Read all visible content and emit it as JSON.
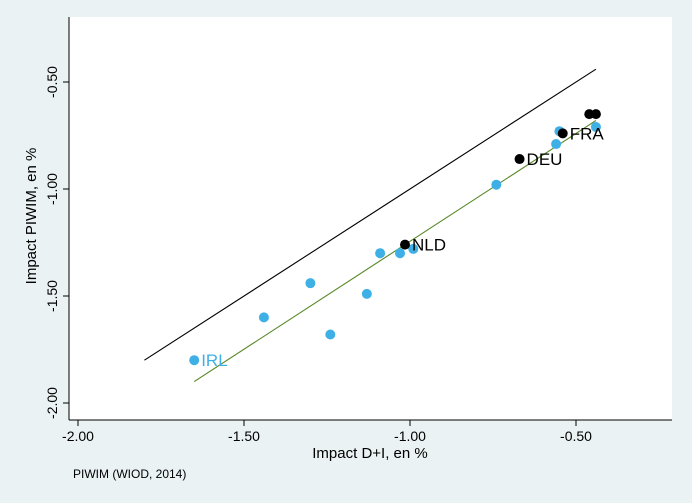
{
  "chart_data": {
    "type": "scatter",
    "xlabel": "Impact D+I, en %",
    "ylabel": "Impact PIWIM, en %",
    "note": "PIWIM (WIOD, 2014)",
    "xlim": [
      -2.0,
      -0.3
    ],
    "ylim": [
      -2.05,
      -0.2
    ],
    "x_ticks": [
      -2.0,
      -1.5,
      -1.0,
      -0.5
    ],
    "x_tick_labels": [
      "-2.00",
      "-1.50",
      "-1.00",
      "-0.50"
    ],
    "y_ticks": [
      -0.5,
      -1.0,
      -1.5,
      -2.0
    ],
    "y_tick_labels": [
      "-0.50",
      "-1.00",
      "-1.50",
      "-2.00"
    ],
    "grid": false,
    "series": [
      {
        "color": "#3fb0e6",
        "points": [
          {
            "x": -1.65,
            "y": -1.8,
            "label": "IRL"
          },
          {
            "x": -1.44,
            "y": -1.6
          },
          {
            "x": -1.3,
            "y": -1.44
          },
          {
            "x": -1.24,
            "y": -1.68
          },
          {
            "x": -1.13,
            "y": -1.49
          },
          {
            "x": -1.09,
            "y": -1.3
          },
          {
            "x": -1.03,
            "y": -1.3
          },
          {
            "x": -0.99,
            "y": -1.28
          },
          {
            "x": -0.74,
            "y": -0.98
          },
          {
            "x": -0.56,
            "y": -0.79
          },
          {
            "x": -0.55,
            "y": -0.73
          },
          {
            "x": -0.44,
            "y": -0.71
          }
        ]
      },
      {
        "color": "#000000",
        "points": [
          {
            "x": -1.015,
            "y": -1.26,
            "label": "NLD"
          },
          {
            "x": -0.67,
            "y": -0.86,
            "label": "DEU"
          },
          {
            "x": -0.54,
            "y": -0.74,
            "label": "FRA"
          },
          {
            "x": -0.46,
            "y": -0.65
          },
          {
            "x": -0.44,
            "y": -0.65
          }
        ]
      }
    ],
    "lines": [
      {
        "color": "#000000",
        "x": [
          -1.8,
          -0.44
        ],
        "y": [
          -1.8,
          -0.44
        ]
      },
      {
        "color": "#5a8a2a",
        "x": [
          -1.65,
          -0.44
        ],
        "y": [
          -1.9,
          -0.68
        ]
      }
    ]
  }
}
